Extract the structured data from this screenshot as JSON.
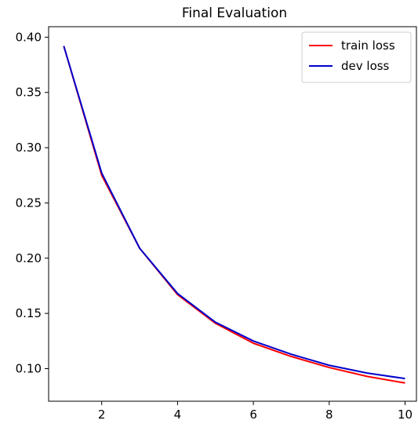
{
  "chart_data": {
    "type": "line",
    "title": "Final Evaluation",
    "xlabel": "",
    "ylabel": "",
    "xlim": [
      0.6,
      10.3
    ],
    "ylim": [
      0.0705,
      0.4095
    ],
    "xticks": [
      2,
      4,
      6,
      8,
      10
    ],
    "xtick_labels": [
      "2",
      "4",
      "6",
      "8",
      "10"
    ],
    "yticks": [
      0.1,
      0.15,
      0.2,
      0.25,
      0.3,
      0.35,
      0.4
    ],
    "ytick_labels": [
      "0.10",
      "0.15",
      "0.20",
      "0.25",
      "0.30",
      "0.35",
      "0.40"
    ],
    "grid": false,
    "legend_position": "top-right",
    "x": [
      1,
      2,
      3,
      4,
      5,
      6,
      7,
      8,
      9,
      10
    ],
    "series": [
      {
        "name": "train loss",
        "color": "#ff0000",
        "values": [
          0.392,
          0.275,
          0.209,
          0.167,
          0.141,
          0.123,
          0.111,
          0.101,
          0.093,
          0.087
        ]
      },
      {
        "name": "dev loss",
        "color": "#0000cc",
        "values": [
          0.392,
          0.277,
          0.209,
          0.168,
          0.142,
          0.125,
          0.113,
          0.103,
          0.096,
          0.091
        ]
      }
    ]
  }
}
